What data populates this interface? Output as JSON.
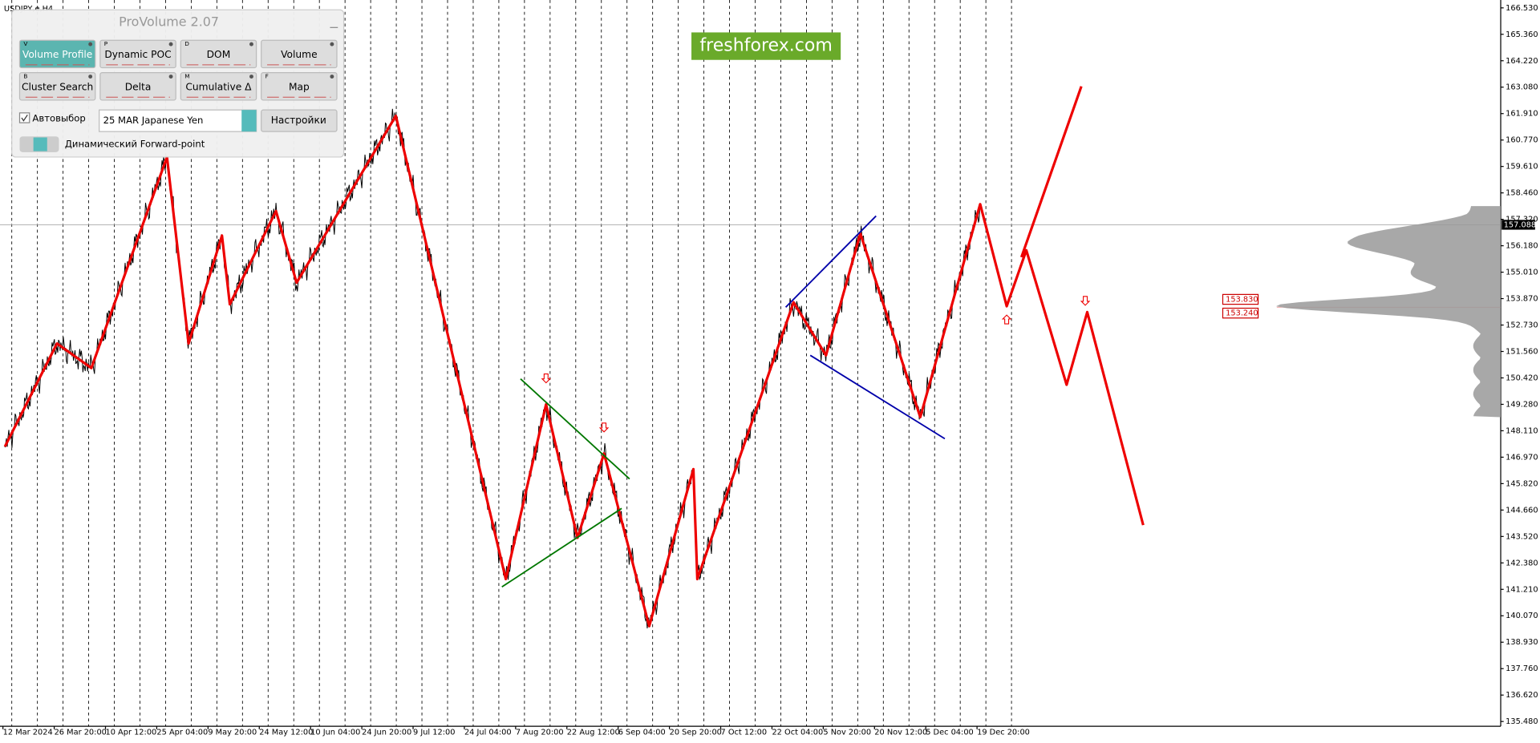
{
  "symbol": "USDJPY,e,H4",
  "panel": {
    "title": "ProVolume 2.07",
    "buttons": [
      {
        "key": "V",
        "label": "Volume Profile"
      },
      {
        "key": "P",
        "label": "Dynamic POC"
      },
      {
        "key": "D",
        "label": "DOM"
      },
      {
        "key": "",
        "label": "Volume"
      },
      {
        "key": "B",
        "label": "Cluster Search"
      },
      {
        "key": "",
        "label": "Delta"
      },
      {
        "key": "M",
        "label": "Cumulative Δ"
      },
      {
        "key": "F",
        "label": "Map"
      }
    ],
    "checkbox": "Автовыбор",
    "select": "25 MAR Japanese Yen",
    "settings": "Настройки",
    "toggle": "Динамический Forward-point"
  },
  "watermark": "freshforex.com",
  "price_axis": [
    "166.530",
    "165.360",
    "164.220",
    "163.080",
    "161.910",
    "160.770",
    "159.610",
    "158.460",
    "157.320",
    "156.180",
    "155.010",
    "153.870",
    "152.730",
    "151.560",
    "150.420",
    "149.280",
    "148.110",
    "146.970",
    "145.820",
    "144.660",
    "143.520",
    "142.380",
    "141.210",
    "140.070",
    "138.930",
    "137.760",
    "136.620",
    "135.480"
  ],
  "current_price": "157.088",
  "levels": [
    "153.830",
    "153.240"
  ],
  "time_axis": [
    "12 Mar 2024",
    "26 Mar 20:00",
    "10 Apr 12:00",
    "25 Apr 04:00",
    "9 May 20:00",
    "24 May 12:00",
    "10 Jun 04:00",
    "24 Jun 20:00",
    "9 Jul 12:00",
    "24 Jul 04:00",
    "7 Aug 20:00",
    "22 Aug 12:00",
    "6 Sep 04:00",
    "20 Sep 20:00",
    "7 Oct 12:00",
    "22 Oct 04:00",
    "5 Nov 20:00",
    "20 Nov 12:00",
    "5 Dec 04:00",
    "19 Dec 20:00"
  ]
}
